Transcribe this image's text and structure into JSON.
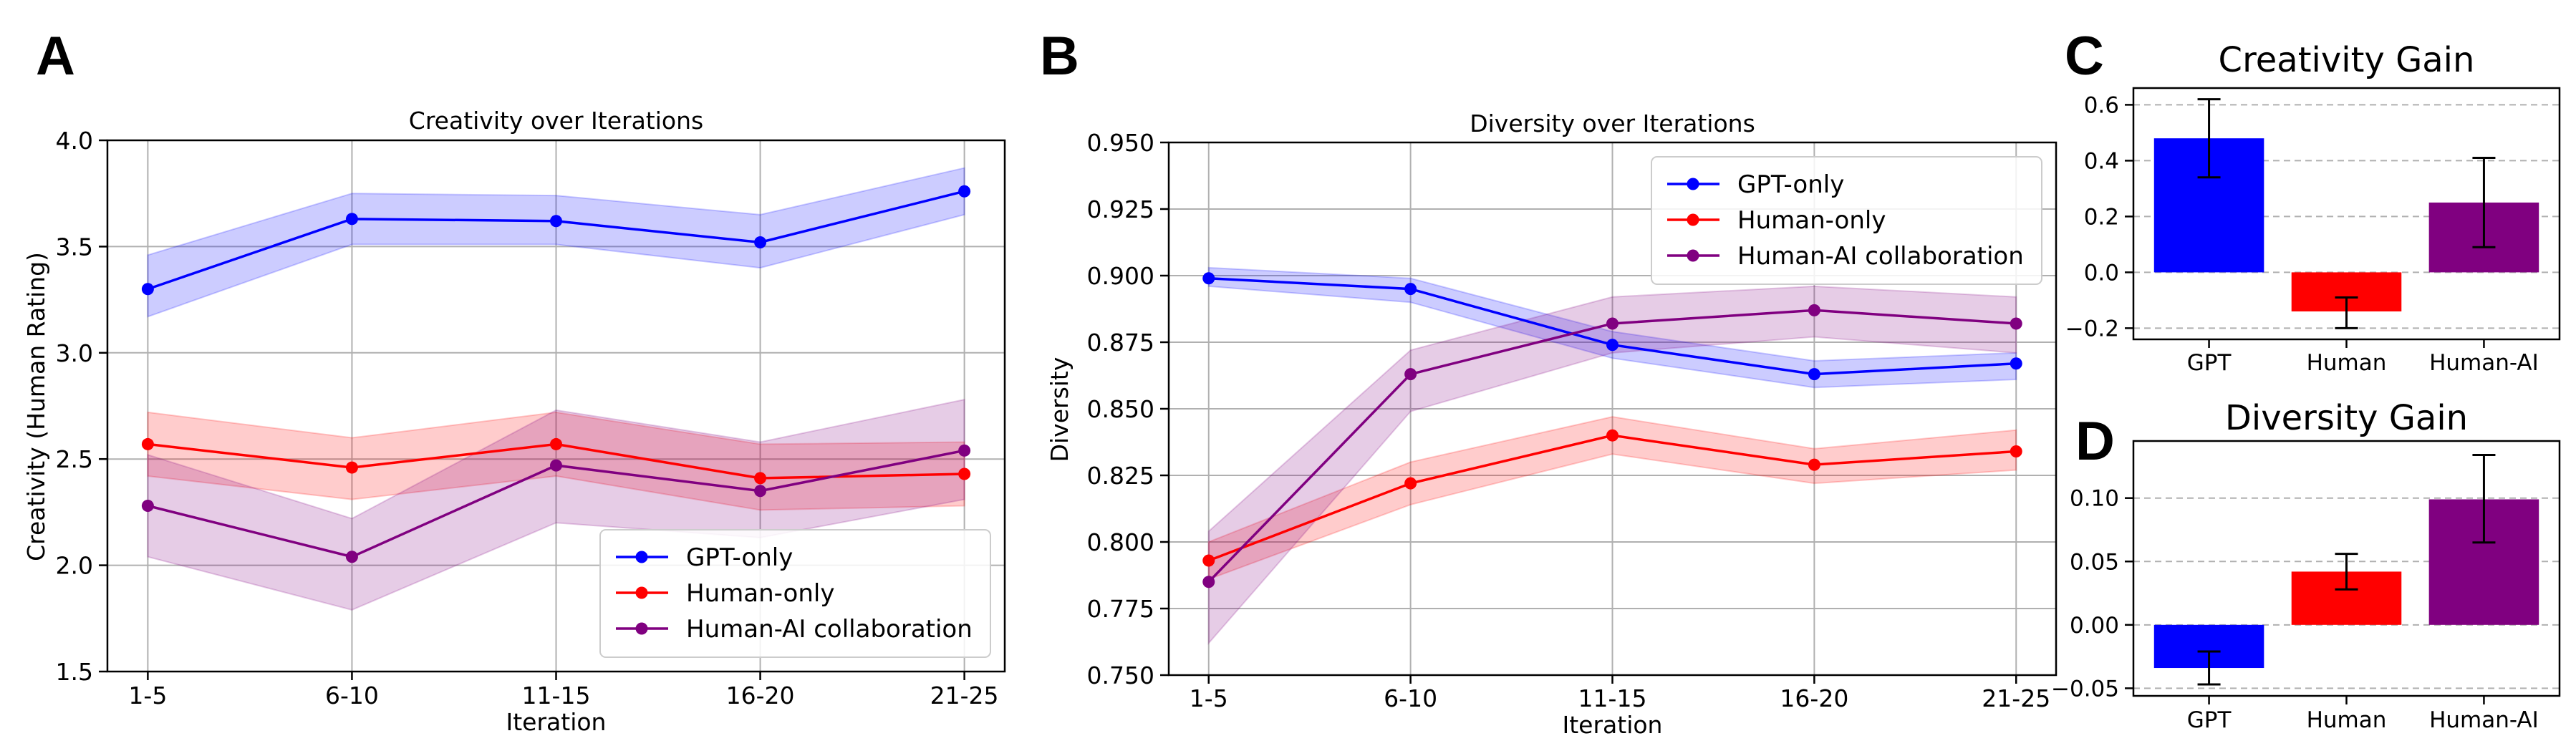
{
  "chart_data": [
    {
      "panel": "A",
      "type": "line",
      "title": "Creativity over Iterations",
      "xlabel": "Iteration",
      "ylabel": "Creativity (Human Rating)",
      "categories": [
        "1-5",
        "6-10",
        "11-15",
        "16-20",
        "21-25"
      ],
      "ylim": [
        1.5,
        4.0
      ],
      "yticks": [
        1.5,
        2.0,
        2.5,
        3.0,
        3.5,
        4.0
      ],
      "ytick_decimals": 1,
      "grid": true,
      "legend_position": "lower-right",
      "series": [
        {
          "name": "GPT-only",
          "color": "#0000ff",
          "values": [
            3.3,
            3.63,
            3.62,
            3.52,
            3.76
          ],
          "lower": [
            3.17,
            3.51,
            3.51,
            3.4,
            3.65
          ],
          "upper": [
            3.46,
            3.75,
            3.74,
            3.65,
            3.87
          ]
        },
        {
          "name": "Human-only",
          "color": "#ff0000",
          "values": [
            2.57,
            2.46,
            2.57,
            2.41,
            2.43
          ],
          "lower": [
            2.42,
            2.31,
            2.42,
            2.26,
            2.28
          ],
          "upper": [
            2.72,
            2.6,
            2.72,
            2.57,
            2.58
          ]
        },
        {
          "name": "Human-AI collaboration",
          "color": "#800080",
          "values": [
            2.28,
            2.04,
            2.47,
            2.35,
            2.54
          ],
          "lower": [
            2.04,
            1.79,
            2.2,
            2.13,
            2.31
          ],
          "upper": [
            2.52,
            2.22,
            2.73,
            2.58,
            2.78
          ]
        }
      ]
    },
    {
      "panel": "B",
      "type": "line",
      "title": "Diversity over Iterations",
      "xlabel": "Iteration",
      "ylabel": "Diversity",
      "categories": [
        "1-5",
        "6-10",
        "11-15",
        "16-20",
        "21-25"
      ],
      "ylim": [
        0.75,
        0.95
      ],
      "yticks": [
        0.75,
        0.775,
        0.8,
        0.825,
        0.85,
        0.875,
        0.9,
        0.925,
        0.95
      ],
      "ytick_decimals": 3,
      "grid": true,
      "legend_position": "upper-right",
      "series": [
        {
          "name": "GPT-only",
          "color": "#0000ff",
          "values": [
            0.899,
            0.895,
            0.874,
            0.863,
            0.867
          ],
          "lower": [
            0.896,
            0.89,
            0.869,
            0.858,
            0.861
          ],
          "upper": [
            0.903,
            0.899,
            0.879,
            0.868,
            0.871
          ]
        },
        {
          "name": "Human-only",
          "color": "#ff0000",
          "values": [
            0.793,
            0.822,
            0.84,
            0.829,
            0.834
          ],
          "lower": [
            0.786,
            0.814,
            0.833,
            0.822,
            0.827
          ],
          "upper": [
            0.8,
            0.83,
            0.847,
            0.835,
            0.842
          ]
        },
        {
          "name": "Human-AI collaboration",
          "color": "#800080",
          "values": [
            0.785,
            0.863,
            0.882,
            0.887,
            0.882
          ],
          "lower": [
            0.762,
            0.849,
            0.871,
            0.877,
            0.871
          ],
          "upper": [
            0.804,
            0.872,
            0.892,
            0.896,
            0.892
          ]
        }
      ]
    },
    {
      "panel": "C",
      "type": "bar",
      "title": "Creativity Gain",
      "categories": [
        "GPT",
        "Human",
        "Human-AI"
      ],
      "colors": [
        "#0000ff",
        "#ff0000",
        "#800080"
      ],
      "values": [
        0.48,
        -0.14,
        0.25
      ],
      "err_low": [
        0.34,
        -0.2,
        0.09
      ],
      "err_high": [
        0.62,
        -0.09,
        0.41
      ],
      "ylim": [
        -0.24,
        0.66
      ],
      "yticks": [
        -0.2,
        0.0,
        0.2,
        0.4,
        0.6
      ],
      "ytick_decimals": 1,
      "grid": "y-dashed"
    },
    {
      "panel": "D",
      "type": "bar",
      "title": "Diversity Gain",
      "categories": [
        "GPT",
        "Human",
        "Human-AI"
      ],
      "colors": [
        "#0000ff",
        "#ff0000",
        "#800080"
      ],
      "values": [
        -0.034,
        0.042,
        0.099
      ],
      "err_low": [
        -0.047,
        0.028,
        0.065
      ],
      "err_high": [
        -0.021,
        0.056,
        0.134
      ],
      "ylim": [
        -0.056,
        0.145
      ],
      "yticks": [
        -0.05,
        0.0,
        0.05,
        0.1
      ],
      "ytick_decimals": 2,
      "grid": "y-dashed"
    }
  ]
}
